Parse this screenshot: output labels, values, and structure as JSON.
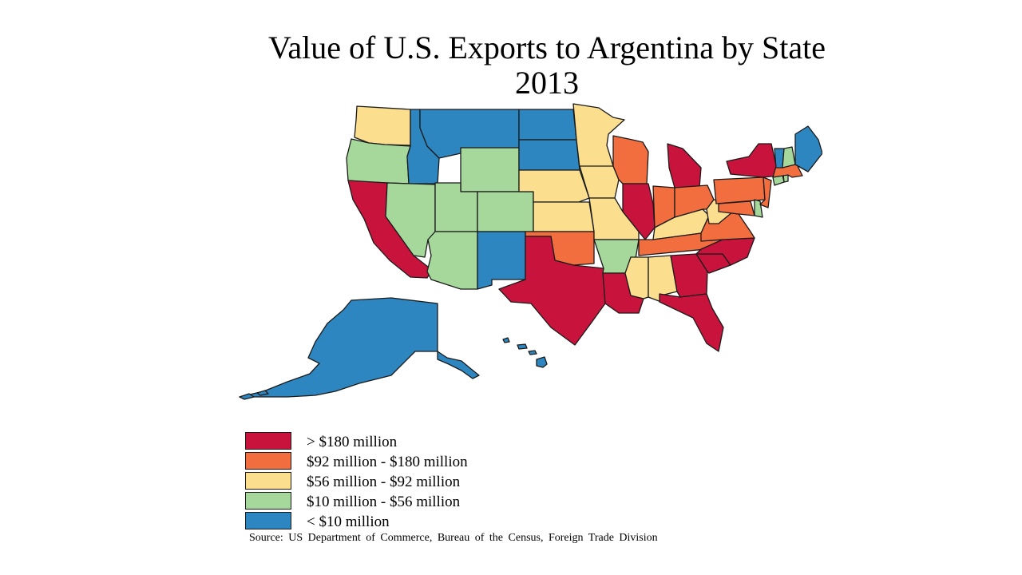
{
  "title": {
    "line1": "Value of U.S. Exports to Argentina by State",
    "line2": "2013"
  },
  "colors": {
    "gt180": "#c8143c",
    "92to180": "#f26e3e",
    "56to92": "#fbdf8f",
    "10to56": "#a6d89c",
    "lt10": "#2e86c1",
    "border": "#1a1a1a"
  },
  "legend": [
    {
      "key": "gt180",
      "label": "> $180 million"
    },
    {
      "key": "92to180",
      "label": "$92 million - $180 million"
    },
    {
      "key": "56to92",
      "label": "$56 million - $92 million"
    },
    {
      "key": "10to56",
      "label": "$10 million - $56 million"
    },
    {
      "key": "lt10",
      "label": "< $10 million"
    }
  ],
  "source": "Source:  US Department of Commerce, Bureau of the Census, Foreign Trade Division",
  "states": [
    {
      "id": "WA",
      "bin": "56to92"
    },
    {
      "id": "OR",
      "bin": "10to56"
    },
    {
      "id": "CA",
      "bin": "gt180"
    },
    {
      "id": "ID",
      "bin": "lt10"
    },
    {
      "id": "NV",
      "bin": "10to56"
    },
    {
      "id": "MT",
      "bin": "lt10"
    },
    {
      "id": "WY",
      "bin": "10to56"
    },
    {
      "id": "UT",
      "bin": "10to56"
    },
    {
      "id": "AZ",
      "bin": "10to56"
    },
    {
      "id": "CO",
      "bin": "10to56"
    },
    {
      "id": "NM",
      "bin": "lt10"
    },
    {
      "id": "ND",
      "bin": "lt10"
    },
    {
      "id": "SD",
      "bin": "lt10"
    },
    {
      "id": "NE",
      "bin": "56to92"
    },
    {
      "id": "KS",
      "bin": "56to92"
    },
    {
      "id": "OK",
      "bin": "92to180"
    },
    {
      "id": "TX",
      "bin": "gt180"
    },
    {
      "id": "MN",
      "bin": "56to92"
    },
    {
      "id": "IA",
      "bin": "56to92"
    },
    {
      "id": "MO",
      "bin": "56to92"
    },
    {
      "id": "AR",
      "bin": "10to56"
    },
    {
      "id": "LA",
      "bin": "gt180"
    },
    {
      "id": "WI",
      "bin": "92to180"
    },
    {
      "id": "IL",
      "bin": "gt180"
    },
    {
      "id": "MS",
      "bin": "56to92"
    },
    {
      "id": "MI",
      "bin": "gt180"
    },
    {
      "id": "IN",
      "bin": "92to180"
    },
    {
      "id": "KY",
      "bin": "56to92"
    },
    {
      "id": "TN",
      "bin": "92to180"
    },
    {
      "id": "AL",
      "bin": "56to92"
    },
    {
      "id": "OH",
      "bin": "92to180"
    },
    {
      "id": "GA",
      "bin": "gt180"
    },
    {
      "id": "FL",
      "bin": "gt180"
    },
    {
      "id": "SC",
      "bin": "gt180"
    },
    {
      "id": "NC",
      "bin": "gt180"
    },
    {
      "id": "VA",
      "bin": "92to180"
    },
    {
      "id": "WV",
      "bin": "56to92"
    },
    {
      "id": "PA",
      "bin": "92to180"
    },
    {
      "id": "NY",
      "bin": "gt180"
    },
    {
      "id": "MD",
      "bin": "92to180"
    },
    {
      "id": "DE",
      "bin": "10to56"
    },
    {
      "id": "NJ",
      "bin": "92to180"
    },
    {
      "id": "CT",
      "bin": "10to56"
    },
    {
      "id": "RI",
      "bin": "10to56"
    },
    {
      "id": "MA",
      "bin": "92to180"
    },
    {
      "id": "VT",
      "bin": "lt10"
    },
    {
      "id": "NH",
      "bin": "10to56"
    },
    {
      "id": "ME",
      "bin": "lt10"
    },
    {
      "id": "AK",
      "bin": "lt10"
    },
    {
      "id": "HI",
      "bin": "lt10"
    }
  ]
}
